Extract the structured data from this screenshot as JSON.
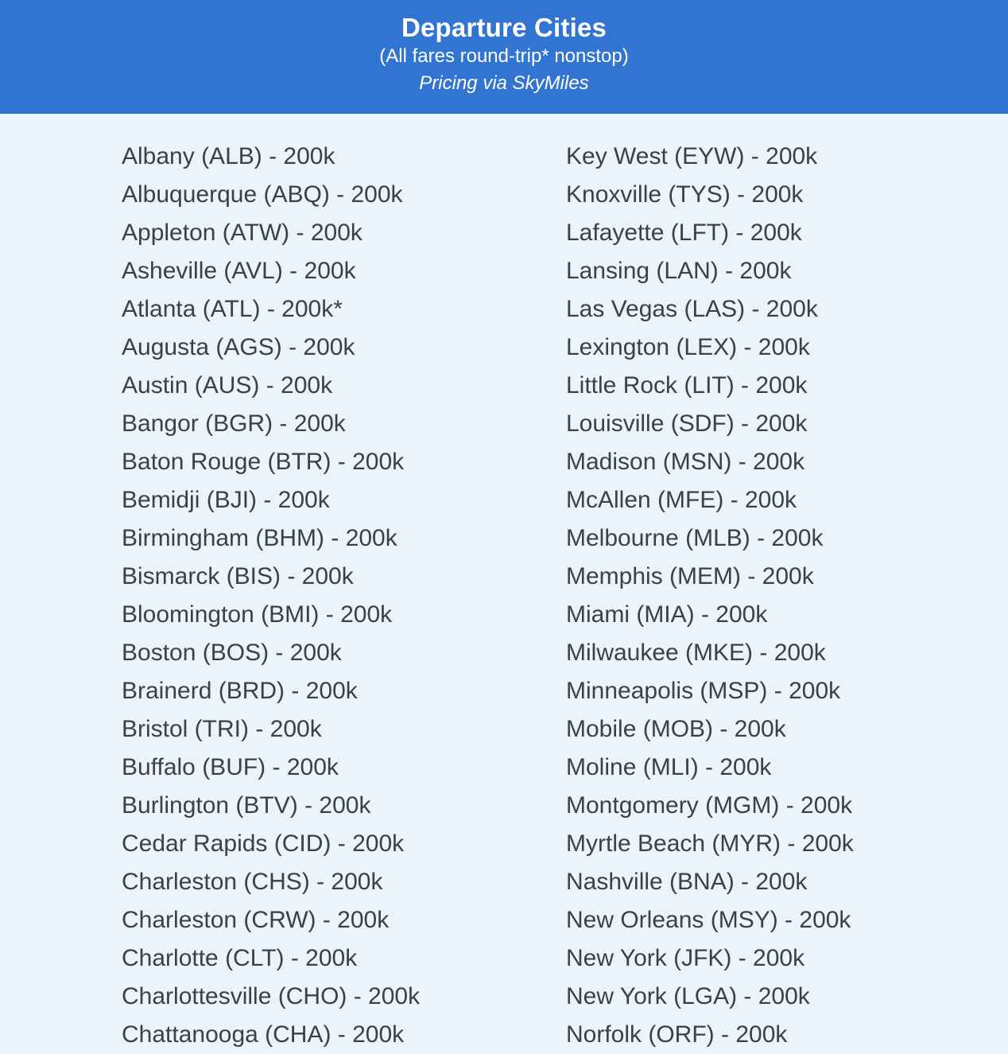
{
  "header": {
    "title": "Departure Cities",
    "subtitle": "(All fares round-trip* nonstop)",
    "pricing_note": "Pricing via SkyMiles"
  },
  "colors": {
    "header_bg": "#3274d2",
    "header_text": "#ffffff",
    "page_bg": "#edf3fc",
    "list_text": "#3b4149"
  },
  "columns": {
    "left": [
      "Albany (ALB) - 200k",
      "Albuquerque (ABQ) - 200k",
      "Appleton (ATW) - 200k",
      "Asheville (AVL) - 200k",
      "Atlanta (ATL) - 200k*",
      "Augusta (AGS) - 200k",
      "Austin (AUS) - 200k",
      "Bangor (BGR) - 200k",
      "Baton Rouge (BTR) - 200k",
      "Bemidji (BJI) - 200k",
      "Birmingham (BHM) - 200k",
      "Bismarck (BIS) - 200k",
      "Bloomington (BMI) - 200k",
      "Boston (BOS) - 200k",
      "Brainerd (BRD) - 200k",
      "Bristol (TRI) - 200k",
      "Buffalo (BUF) - 200k",
      "Burlington (BTV) - 200k",
      "Cedar Rapids (CID) - 200k",
      "Charleston (CHS) - 200k",
      "Charleston (CRW) - 200k",
      "Charlotte (CLT) - 200k",
      "Charlottesville (CHO) - 200k",
      "Chattanooga (CHA) - 200k"
    ],
    "right": [
      "Key West (EYW) - 200k",
      "Knoxville (TYS) - 200k",
      "Lafayette (LFT) - 200k",
      "Lansing (LAN) - 200k",
      "Las Vegas (LAS) - 200k",
      "Lexington (LEX) - 200k",
      "Little Rock (LIT) - 200k",
      "Louisville (SDF) - 200k",
      "Madison (MSN) - 200k",
      "McAllen (MFE) - 200k",
      "Melbourne (MLB) - 200k",
      "Memphis (MEM) - 200k",
      "Miami (MIA) - 200k",
      "Milwaukee (MKE) - 200k",
      "Minneapolis (MSP) - 200k",
      "Mobile (MOB) - 200k",
      "Moline (MLI) - 200k",
      "Montgomery (MGM) - 200k",
      "Myrtle Beach (MYR) - 200k",
      "Nashville (BNA) - 200k",
      "New Orleans (MSY) - 200k",
      "New York (JFK) - 200k",
      "New York (LGA) - 200k",
      "Norfolk (ORF) - 200k"
    ]
  }
}
